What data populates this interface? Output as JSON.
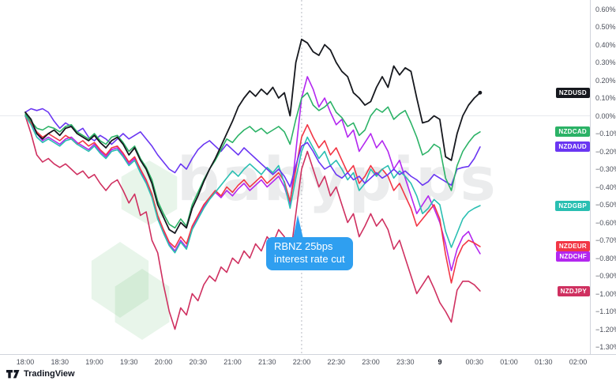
{
  "watermark": {
    "text": "babypips",
    "logo": "babypips-lotus",
    "logo_color": "#4caf60"
  },
  "callout": {
    "line1": "RBNZ 25bps",
    "line2": "interest rate cut",
    "color": "#2f9ff0",
    "text_color": "#ffffff"
  },
  "branding": {
    "logo": "tradingview-logo",
    "text": "TradingView"
  },
  "axes": {
    "price_labels": [
      "0.60%",
      "0.50%",
      "0.40%",
      "0.30%",
      "0.20%",
      "0.10%",
      "0.00%",
      "−0.10%",
      "−0.20%",
      "−0.30%",
      "−0.40%",
      "−0.50%",
      "−0.60%",
      "−0.70%",
      "−0.80%",
      "−0.90%",
      "−1.00%",
      "−1.10%",
      "−1.20%",
      "−1.30%"
    ],
    "time_labels": [
      "18:00",
      "18:30",
      "19:00",
      "19:30",
      "20:00",
      "20:30",
      "21:00",
      "21:30",
      "22:00",
      "22:30",
      "23:00",
      "23:30",
      "9",
      "00:30",
      "01:00",
      "01:30",
      "02:00"
    ],
    "day_change_label": "9"
  },
  "chart_data": {
    "type": "line",
    "title": "",
    "xlabel": "time",
    "ylabel": "percent change",
    "x_start": "18:00",
    "x_step_minutes": 5,
    "ylim": [
      -1.3,
      0.6
    ],
    "grid_zero_line": true,
    "event_line_time": "22:00",
    "legend_position": "right-edge-badges",
    "series": [
      {
        "name": "NZDUSD",
        "color": "#16181e",
        "end_dot": true,
        "values": [
          0.02,
          -0.02,
          -0.1,
          -0.13,
          -0.1,
          -0.08,
          -0.11,
          -0.07,
          -0.06,
          -0.1,
          -0.12,
          -0.14,
          -0.11,
          -0.15,
          -0.18,
          -0.14,
          -0.12,
          -0.16,
          -0.22,
          -0.18,
          -0.25,
          -0.3,
          -0.38,
          -0.5,
          -0.57,
          -0.64,
          -0.66,
          -0.6,
          -0.63,
          -0.52,
          -0.45,
          -0.37,
          -0.3,
          -0.24,
          -0.17,
          -0.1,
          -0.03,
          0.05,
          0.1,
          0.14,
          0.11,
          0.15,
          0.12,
          0.16,
          0.1,
          0.13,
          0.0,
          0.3,
          0.43,
          0.41,
          0.36,
          0.34,
          0.4,
          0.37,
          0.3,
          0.25,
          0.22,
          0.13,
          0.1,
          0.06,
          0.08,
          0.16,
          0.22,
          0.16,
          0.28,
          0.23,
          0.27,
          0.25,
          0.1,
          -0.04,
          -0.03,
          0.0,
          -0.02,
          -0.23,
          -0.25,
          -0.1,
          0.0,
          0.06,
          0.1,
          0.13
        ]
      },
      {
        "name": "NZDCAD",
        "color": "#2bb266",
        "end_dot": false,
        "values": [
          0.01,
          -0.03,
          -0.07,
          -0.08,
          -0.06,
          -0.07,
          -0.09,
          -0.06,
          -0.05,
          -0.09,
          -0.11,
          -0.13,
          -0.1,
          -0.14,
          -0.16,
          -0.12,
          -0.11,
          -0.15,
          -0.2,
          -0.17,
          -0.24,
          -0.29,
          -0.36,
          -0.48,
          -0.55,
          -0.61,
          -0.63,
          -0.58,
          -0.62,
          -0.5,
          -0.43,
          -0.36,
          -0.3,
          -0.25,
          -0.19,
          -0.13,
          -0.15,
          -0.11,
          -0.08,
          -0.06,
          -0.09,
          -0.07,
          -0.1,
          -0.08,
          -0.06,
          -0.09,
          -0.16,
          -0.02,
          0.1,
          0.13,
          0.06,
          0.03,
          0.05,
          0.08,
          0.02,
          -0.01,
          -0.06,
          -0.04,
          -0.11,
          -0.08,
          0.0,
          0.04,
          0.02,
          0.05,
          -0.02,
          0.01,
          0.03,
          -0.04,
          -0.12,
          -0.22,
          -0.2,
          -0.16,
          -0.18,
          -0.35,
          -0.42,
          -0.28,
          -0.2,
          -0.15,
          -0.11,
          -0.09
        ]
      },
      {
        "name": "NZDAUD",
        "color": "#6a36f2",
        "end_dot": false,
        "values": [
          0.02,
          0.04,
          0.03,
          0.04,
          0.02,
          -0.03,
          -0.07,
          -0.04,
          -0.06,
          -0.09,
          -0.07,
          -0.12,
          -0.14,
          -0.11,
          -0.13,
          -0.16,
          -0.13,
          -0.1,
          -0.13,
          -0.11,
          -0.09,
          -0.13,
          -0.17,
          -0.22,
          -0.26,
          -0.3,
          -0.32,
          -0.27,
          -0.3,
          -0.24,
          -0.19,
          -0.16,
          -0.14,
          -0.17,
          -0.2,
          -0.16,
          -0.19,
          -0.22,
          -0.18,
          -0.21,
          -0.24,
          -0.27,
          -0.3,
          -0.33,
          -0.3,
          -0.34,
          -0.4,
          -0.28,
          -0.17,
          -0.15,
          -0.2,
          -0.26,
          -0.3,
          -0.28,
          -0.33,
          -0.35,
          -0.32,
          -0.36,
          -0.34,
          -0.38,
          -0.35,
          -0.32,
          -0.35,
          -0.33,
          -0.3,
          -0.33,
          -0.31,
          -0.34,
          -0.36,
          -0.39,
          -0.37,
          -0.33,
          -0.35,
          -0.37,
          -0.39,
          -0.3,
          -0.29,
          -0.285,
          -0.24,
          -0.175
        ]
      },
      {
        "name": "NZDGBP",
        "color": "#2abfb2",
        "end_dot": false,
        "values": [
          0.0,
          -0.05,
          -0.12,
          -0.15,
          -0.13,
          -0.15,
          -0.17,
          -0.14,
          -0.13,
          -0.16,
          -0.18,
          -0.2,
          -0.17,
          -0.21,
          -0.24,
          -0.2,
          -0.19,
          -0.23,
          -0.28,
          -0.25,
          -0.32,
          -0.38,
          -0.46,
          -0.58,
          -0.66,
          -0.73,
          -0.77,
          -0.71,
          -0.75,
          -0.64,
          -0.58,
          -0.52,
          -0.47,
          -0.43,
          -0.39,
          -0.35,
          -0.31,
          -0.34,
          -0.3,
          -0.27,
          -0.3,
          -0.33,
          -0.29,
          -0.32,
          -0.28,
          -0.38,
          -0.52,
          -0.35,
          -0.2,
          -0.12,
          -0.18,
          -0.24,
          -0.2,
          -0.28,
          -0.25,
          -0.3,
          -0.36,
          -0.32,
          -0.42,
          -0.38,
          -0.3,
          -0.34,
          -0.3,
          -0.28,
          -0.35,
          -0.31,
          -0.34,
          -0.38,
          -0.45,
          -0.55,
          -0.52,
          -0.47,
          -0.5,
          -0.65,
          -0.74,
          -0.66,
          -0.58,
          -0.54,
          -0.52,
          -0.505
        ]
      },
      {
        "name": "NZDEUR",
        "color": "#f23645",
        "end_dot": false,
        "values": [
          0.0,
          -0.04,
          -0.09,
          -0.12,
          -0.1,
          -0.12,
          -0.14,
          -0.11,
          -0.13,
          -0.16,
          -0.14,
          -0.17,
          -0.15,
          -0.19,
          -0.22,
          -0.18,
          -0.17,
          -0.21,
          -0.26,
          -0.23,
          -0.3,
          -0.36,
          -0.44,
          -0.56,
          -0.64,
          -0.71,
          -0.74,
          -0.68,
          -0.72,
          -0.62,
          -0.56,
          -0.5,
          -0.46,
          -0.42,
          -0.45,
          -0.4,
          -0.43,
          -0.39,
          -0.36,
          -0.4,
          -0.37,
          -0.34,
          -0.38,
          -0.35,
          -0.32,
          -0.37,
          -0.48,
          -0.3,
          -0.12,
          -0.05,
          -0.12,
          -0.18,
          -0.14,
          -0.22,
          -0.18,
          -0.25,
          -0.32,
          -0.28,
          -0.38,
          -0.34,
          -0.28,
          -0.33,
          -0.3,
          -0.34,
          -0.42,
          -0.38,
          -0.45,
          -0.52,
          -0.62,
          -0.58,
          -0.54,
          -0.5,
          -0.58,
          -0.78,
          -0.94,
          -0.8,
          -0.73,
          -0.7,
          -0.715,
          -0.735
        ]
      },
      {
        "name": "NZDCHF",
        "color": "#b327f0",
        "end_dot": false,
        "values": [
          0.0,
          -0.04,
          -0.1,
          -0.14,
          -0.12,
          -0.14,
          -0.16,
          -0.13,
          -0.12,
          -0.15,
          -0.17,
          -0.19,
          -0.16,
          -0.2,
          -0.23,
          -0.19,
          -0.18,
          -0.22,
          -0.27,
          -0.24,
          -0.31,
          -0.37,
          -0.45,
          -0.57,
          -0.65,
          -0.72,
          -0.76,
          -0.7,
          -0.74,
          -0.63,
          -0.57,
          -0.51,
          -0.47,
          -0.43,
          -0.46,
          -0.42,
          -0.45,
          -0.41,
          -0.38,
          -0.42,
          -0.39,
          -0.36,
          -0.4,
          -0.37,
          -0.34,
          -0.4,
          -0.5,
          -0.2,
          0.1,
          0.22,
          0.15,
          0.05,
          0.1,
          0.02,
          -0.05,
          -0.02,
          -0.12,
          -0.08,
          -0.2,
          -0.15,
          -0.1,
          -0.18,
          -0.14,
          -0.2,
          -0.3,
          -0.25,
          -0.35,
          -0.45,
          -0.55,
          -0.5,
          -0.45,
          -0.52,
          -0.6,
          -0.72,
          -0.87,
          -0.75,
          -0.68,
          -0.65,
          -0.72,
          -0.775
        ]
      },
      {
        "name": "NZDJPY",
        "color": "#cf3060",
        "end_dot": false,
        "values": [
          0.0,
          -0.1,
          -0.22,
          -0.26,
          -0.24,
          -0.27,
          -0.29,
          -0.27,
          -0.3,
          -0.33,
          -0.31,
          -0.35,
          -0.33,
          -0.38,
          -0.42,
          -0.38,
          -0.36,
          -0.42,
          -0.49,
          -0.44,
          -0.56,
          -0.54,
          -0.7,
          -0.77,
          -0.95,
          -1.1,
          -1.2,
          -1.08,
          -1.12,
          -1.0,
          -1.04,
          -0.95,
          -0.9,
          -0.93,
          -0.85,
          -0.88,
          -0.8,
          -0.83,
          -0.76,
          -0.8,
          -0.72,
          -0.76,
          -0.68,
          -0.72,
          -0.64,
          -0.68,
          -0.8,
          -0.55,
          -0.3,
          -0.2,
          -0.3,
          -0.4,
          -0.34,
          -0.45,
          -0.4,
          -0.5,
          -0.6,
          -0.55,
          -0.68,
          -0.62,
          -0.55,
          -0.62,
          -0.58,
          -0.64,
          -0.75,
          -0.7,
          -0.8,
          -0.9,
          -1.0,
          -0.95,
          -0.9,
          -0.97,
          -1.05,
          -1.1,
          -1.16,
          -0.98,
          -0.93,
          -0.93,
          -0.95,
          -0.985
        ]
      }
    ]
  }
}
